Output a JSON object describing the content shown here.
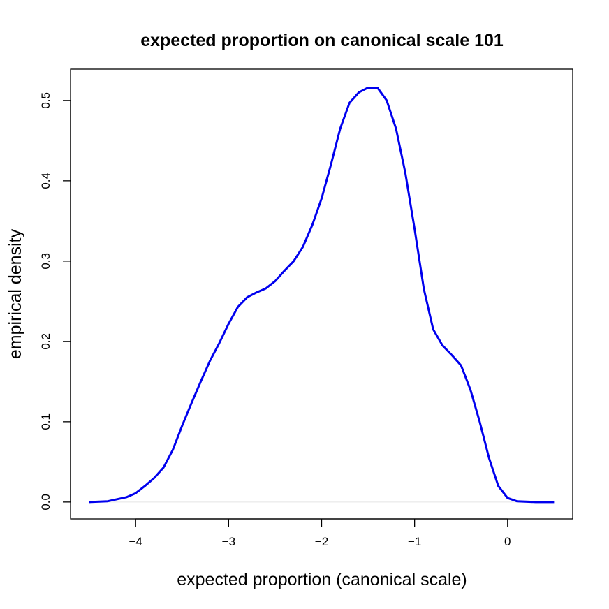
{
  "chart_data": {
    "type": "line",
    "title": "expected proportion on canonical scale 101",
    "xlabel": "expected proportion (canonical scale)",
    "ylabel": "empirical density",
    "xlim": [
      -4.7,
      0.7
    ],
    "ylim": [
      -0.021,
      0.539
    ],
    "xticks": [
      {
        "value": -4,
        "label": "−4"
      },
      {
        "value": -3,
        "label": "−3"
      },
      {
        "value": -2,
        "label": "−2"
      },
      {
        "value": -1,
        "label": "−1"
      },
      0
    ],
    "yticks": [
      {
        "value": 0,
        "label": "0.0"
      },
      0.1,
      0.2,
      0.3,
      0.4,
      0.5
    ],
    "zero_line": true,
    "series": [
      {
        "color": "#0000ee",
        "x": [
          -4.5,
          -4.3,
          -4.1,
          -4.0,
          -3.9,
          -3.8,
          -3.7,
          -3.6,
          -3.5,
          -3.4,
          -3.3,
          -3.2,
          -3.1,
          -3.0,
          -2.9,
          -2.8,
          -2.7,
          -2.6,
          -2.5,
          -2.4,
          -2.3,
          -2.2,
          -2.1,
          -2.0,
          -1.9,
          -1.8,
          -1.7,
          -1.6,
          -1.5,
          -1.4,
          -1.3,
          -1.2,
          -1.1,
          -1.0,
          -0.9,
          -0.8,
          -0.7,
          -0.6,
          -0.5,
          -0.4,
          -0.3,
          -0.2,
          -0.1,
          0.0,
          0.1,
          0.3,
          0.5
        ],
        "values": [
          0.0,
          0.001,
          0.006,
          0.011,
          0.02,
          0.03,
          0.043,
          0.065,
          0.095,
          0.123,
          0.15,
          0.176,
          0.198,
          0.222,
          0.243,
          0.255,
          0.261,
          0.266,
          0.275,
          0.288,
          0.3,
          0.318,
          0.345,
          0.378,
          0.42,
          0.465,
          0.497,
          0.51,
          0.516,
          0.516,
          0.5,
          0.465,
          0.41,
          0.34,
          0.265,
          0.215,
          0.195,
          0.183,
          0.17,
          0.14,
          0.1,
          0.055,
          0.02,
          0.005,
          0.001,
          0.0,
          0.0
        ]
      }
    ]
  }
}
